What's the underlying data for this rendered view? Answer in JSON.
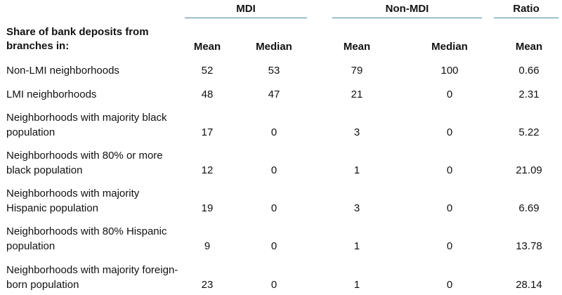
{
  "groups": {
    "mdi": "MDI",
    "non_mdi": "Non-MDI",
    "ratio": "Ratio"
  },
  "row_header": "Share of bank deposits from branches in:",
  "columns": [
    "Mean",
    "Median",
    "Mean",
    "Median",
    "Mean"
  ],
  "rows": [
    {
      "label": "Non-LMI neighborhoods",
      "values": [
        "52",
        "53",
        "79",
        "100",
        "0.66"
      ]
    },
    {
      "label": "LMI neighborhoods",
      "values": [
        "48",
        "47",
        "21",
        "0",
        "2.31"
      ]
    },
    {
      "label": "Neighborhoods with majority black population",
      "values": [
        "17",
        "0",
        "3",
        "0",
        "5.22"
      ]
    },
    {
      "label": "Neighborhoods with 80% or more black population",
      "values": [
        "12",
        "0",
        "1",
        "0",
        "21.09"
      ]
    },
    {
      "label": "Neighborhoods with majority Hispanic population",
      "values": [
        "19",
        "0",
        "3",
        "0",
        "6.69"
      ]
    },
    {
      "label": "Neighborhoods with 80% Hispanic population",
      "values": [
        "9",
        "0",
        "1",
        "0",
        "13.78"
      ]
    },
    {
      "label": "Neighborhoods with majority foreign-born population",
      "values": [
        "23",
        "0",
        "1",
        "0",
        "28.14"
      ]
    }
  ]
}
